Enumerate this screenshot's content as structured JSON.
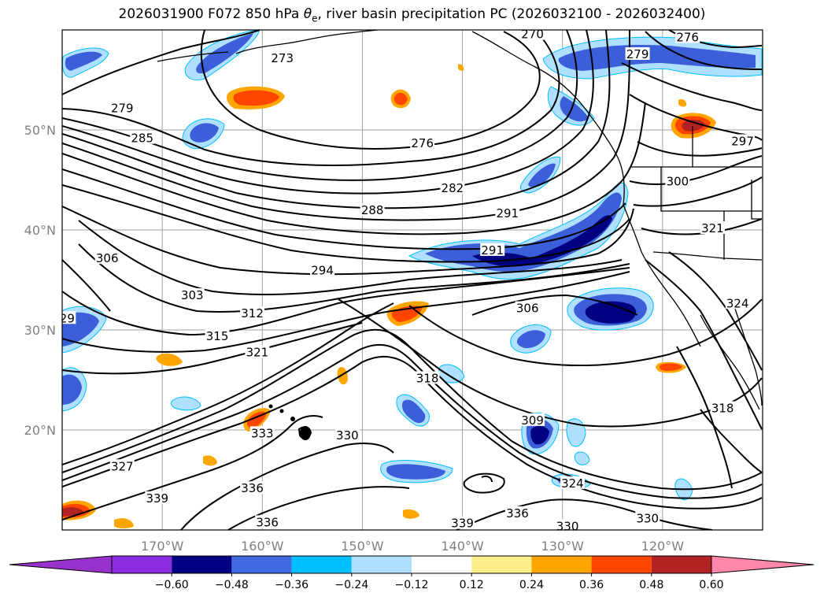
{
  "title": {
    "main_prefix": "2026031900 F072 850 hPa ",
    "theta_symbol": "θ",
    "theta_sub": "e",
    "main_suffix": ", river basin precipitation PC (2026032100 - 2026032400)"
  },
  "map": {
    "lon_range": [
      -180,
      -110
    ],
    "lat_range": [
      10,
      60
    ],
    "grid": true,
    "lon_ticks": [
      {
        "lon": -170,
        "label": "170°W"
      },
      {
        "lon": -160,
        "label": "160°W"
      },
      {
        "lon": -150,
        "label": "150°W"
      },
      {
        "lon": -140,
        "label": "140°W"
      },
      {
        "lon": -130,
        "label": "130°W"
      },
      {
        "lon": -120,
        "label": "120°W"
      }
    ],
    "lat_ticks": [
      {
        "lat": 20,
        "label": "20°N"
      },
      {
        "lat": 30,
        "label": "30°N"
      },
      {
        "lat": 40,
        "label": "40°N"
      },
      {
        "lat": 50,
        "label": "50°N"
      }
    ],
    "contour_labels": [
      {
        "text": "279",
        "lon": -174,
        "lat": 52
      },
      {
        "text": "285",
        "lon": -172,
        "lat": 49
      },
      {
        "text": "273",
        "lon": -158,
        "lat": 57
      },
      {
        "text": "276",
        "lon": -144,
        "lat": 48.5
      },
      {
        "text": "282",
        "lon": -141,
        "lat": 44
      },
      {
        "text": "288",
        "lon": -149,
        "lat": 41.8
      },
      {
        "text": "291",
        "lon": -135.5,
        "lat": 41.5
      },
      {
        "text": "291",
        "lon": -137,
        "lat": 37.8
      },
      {
        "text": "294",
        "lon": -154,
        "lat": 35.8
      },
      {
        "text": "306",
        "lon": -175.5,
        "lat": 37
      },
      {
        "text": "303",
        "lon": -167,
        "lat": 33.3
      },
      {
        "text": "312",
        "lon": -161,
        "lat": 31.5
      },
      {
        "text": "315",
        "lon": -164.5,
        "lat": 29.2
      },
      {
        "text": "321",
        "lon": -160.5,
        "lat": 27.6
      },
      {
        "text": "318",
        "lon": -143.5,
        "lat": 25
      },
      {
        "text": "306",
        "lon": -133.5,
        "lat": 32
      },
      {
        "text": "309",
        "lon": -133,
        "lat": 20.8
      },
      {
        "text": "333",
        "lon": -160,
        "lat": 19.5
      },
      {
        "text": "330",
        "lon": -151.5,
        "lat": 19.3
      },
      {
        "text": "327",
        "lon": -174,
        "lat": 16.2
      },
      {
        "text": "336",
        "lon": -161,
        "lat": 14
      },
      {
        "text": "339",
        "lon": -170.5,
        "lat": 13
      },
      {
        "text": "336",
        "lon": -159.5,
        "lat": 10.6
      },
      {
        "text": "339",
        "lon": -140,
        "lat": 10.5
      },
      {
        "text": "336",
        "lon": -134.5,
        "lat": 11.5
      },
      {
        "text": "324",
        "lon": -129,
        "lat": 14.5
      },
      {
        "text": "330",
        "lon": -129.5,
        "lat": 10.2
      },
      {
        "text": "330",
        "lon": -121.5,
        "lat": 11
      },
      {
        "text": "318",
        "lon": -114,
        "lat": 22
      },
      {
        "text": "324",
        "lon": -112.5,
        "lat": 32.5
      },
      {
        "text": "321",
        "lon": -115,
        "lat": 40
      },
      {
        "text": "300",
        "lon": -118.5,
        "lat": 44.7
      },
      {
        "text": "297",
        "lon": -112,
        "lat": 48.7
      },
      {
        "text": "279",
        "lon": -122.5,
        "lat": 57.4
      },
      {
        "text": "276",
        "lon": -117.5,
        "lat": 59.1
      },
      {
        "text": "270",
        "lon": -133,
        "lat": 59.4
      },
      {
        "text": "29",
        "lon": -179.5,
        "lat": 31
      }
    ],
    "contour_color": "#000000"
  },
  "colorbar": {
    "colors": [
      "#9932cc",
      "#8b2be2",
      "#000080",
      "#4169e1",
      "#00bfff",
      "#b0e0ff",
      "#ffffff",
      "#ffee8c",
      "#ffa500",
      "#ff4500",
      "#b22222",
      "#ff88aa"
    ],
    "tick_labels": [
      "−0.60",
      "−0.48",
      "−0.36",
      "−0.24",
      "−0.12",
      "0.12",
      "0.24",
      "0.36",
      "0.48",
      "0.60"
    ]
  },
  "fill_colors": {
    "neg_strong": "#000080",
    "neg_mid": "#3a5fd9",
    "neg_weak": "#00bfff",
    "neg_faint": "#b0e0ff",
    "pos_faint": "#ffee8c",
    "pos_weak": "#ffa500",
    "pos_mid": "#ff4500",
    "pos_strong": "#b22222"
  }
}
